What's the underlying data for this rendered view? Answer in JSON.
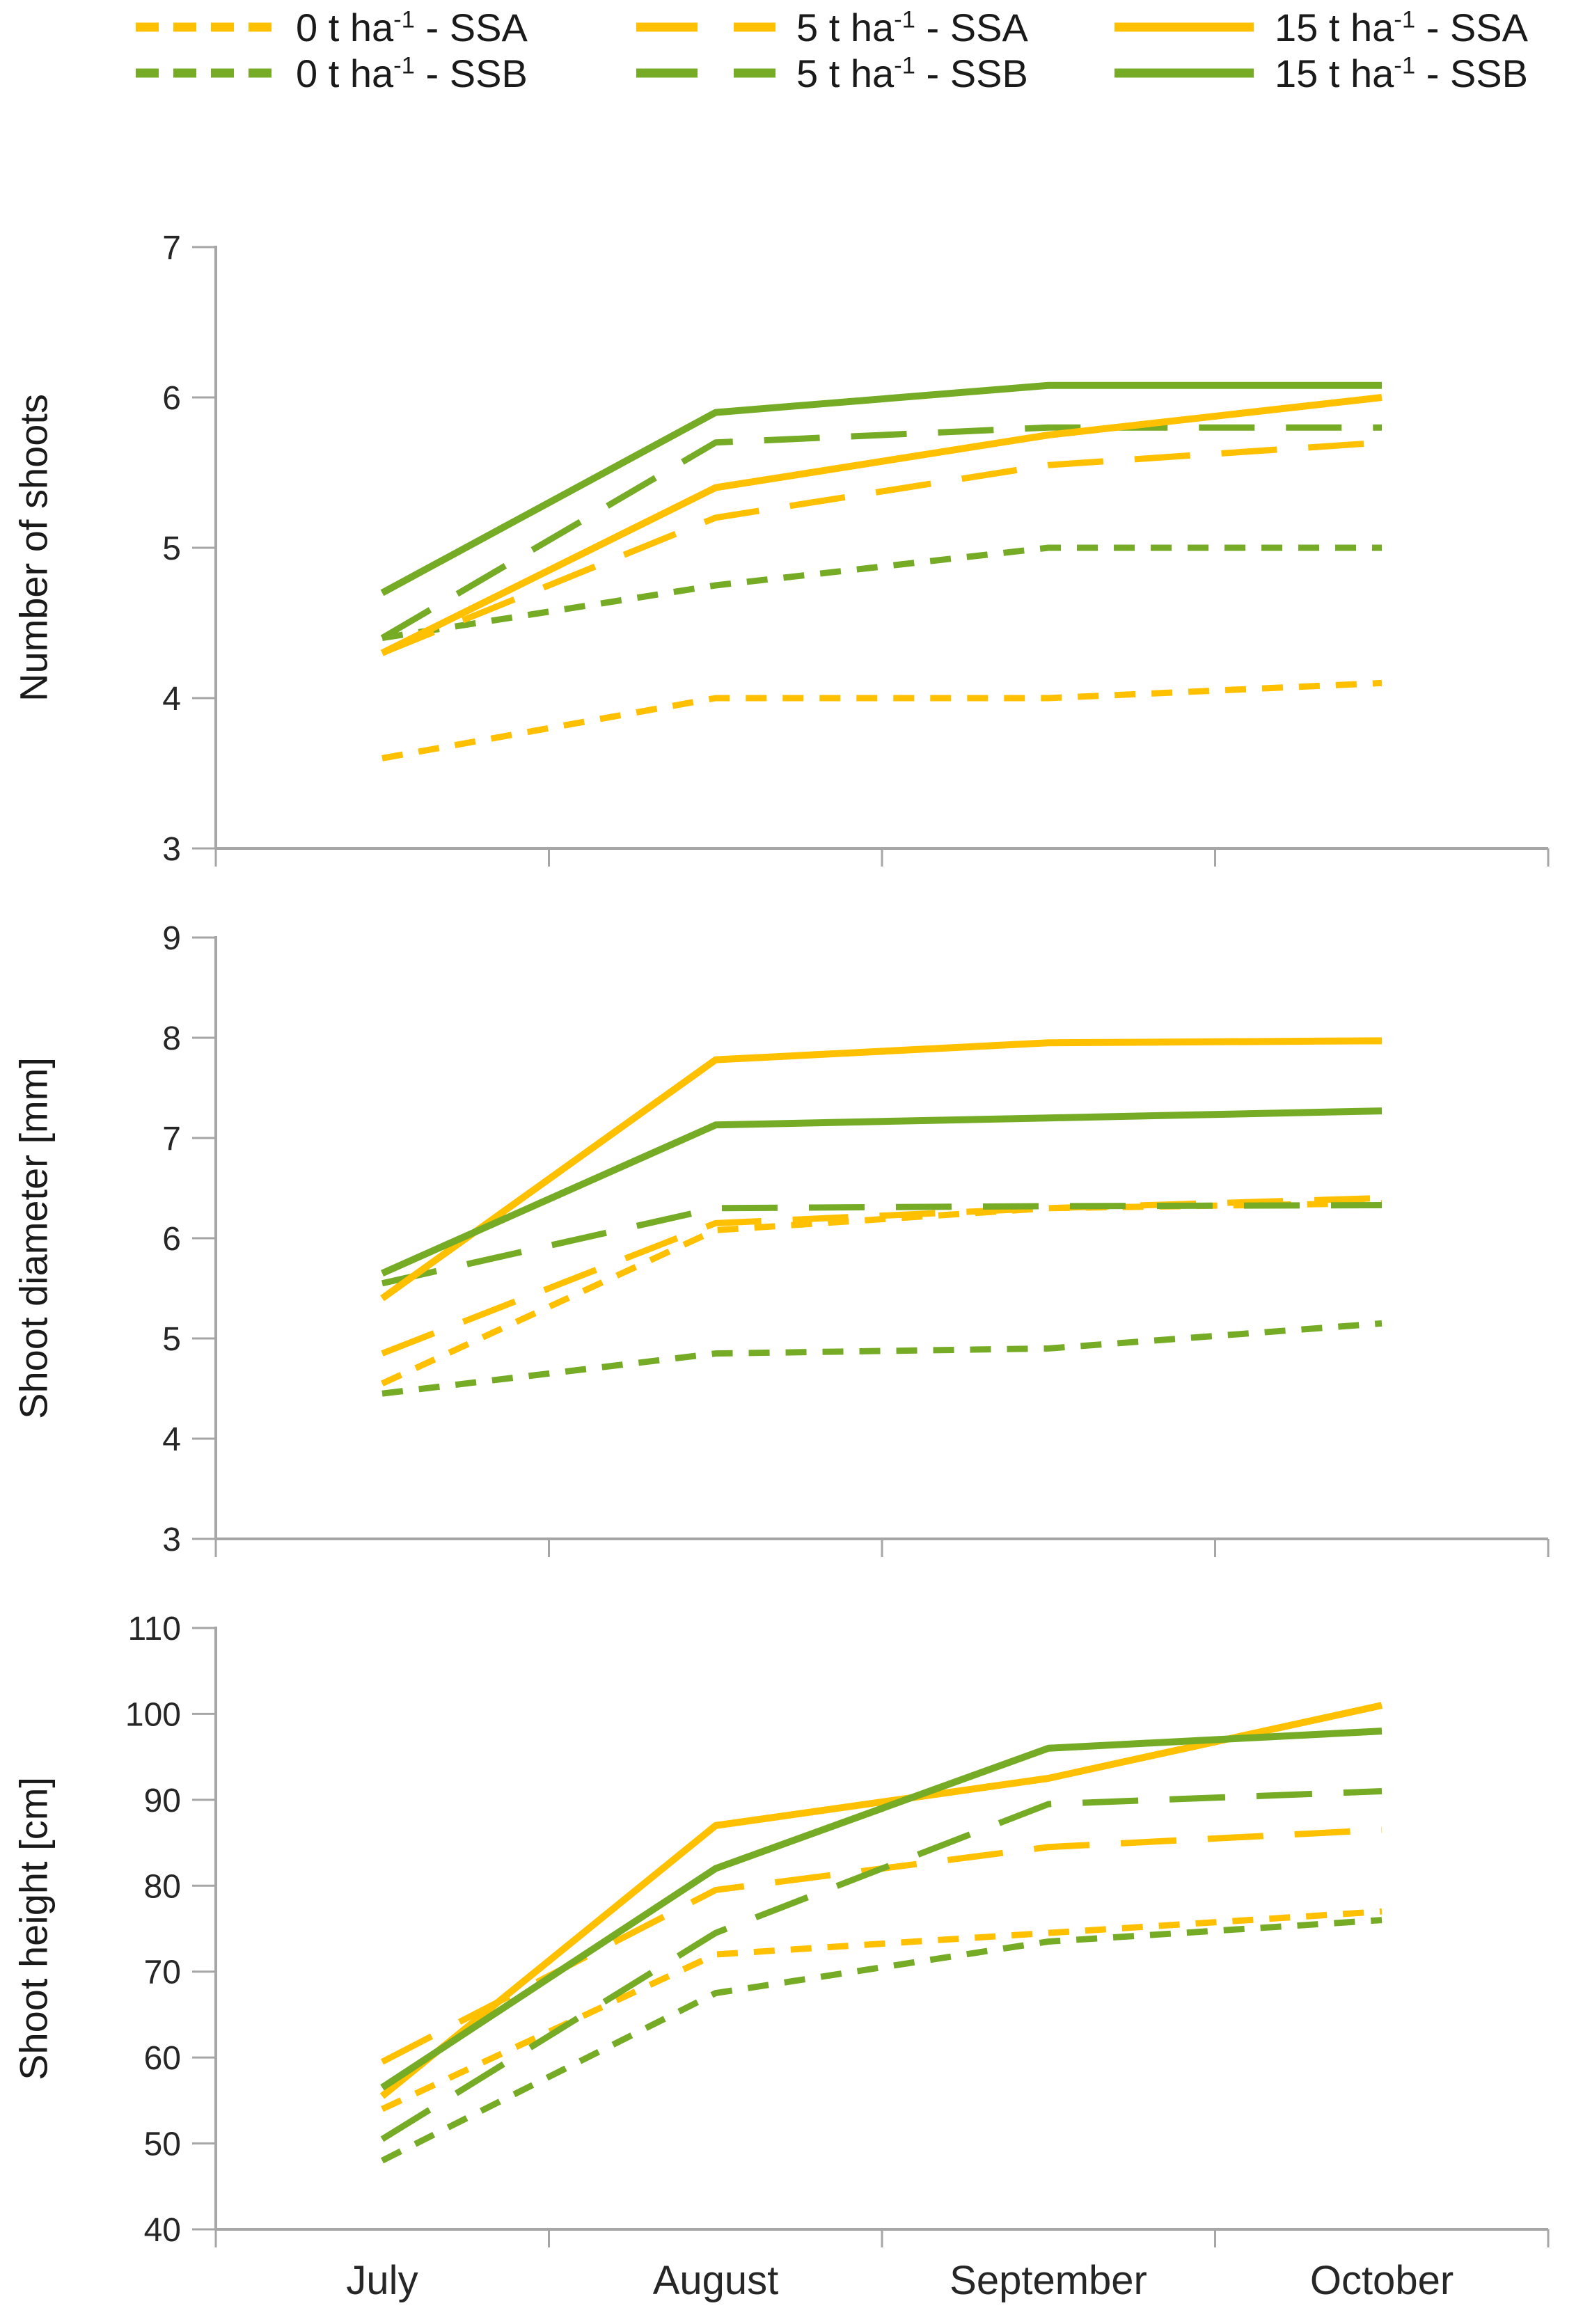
{
  "legend": {
    "note": "two rows, three columns of line samples with labels"
  },
  "series": {
    "0ssa": {
      "label_prefix": "0 t ha",
      "label_sup": "-1",
      "label_suffix": " - SSA",
      "color": "#FFC000",
      "dash": "short"
    },
    "5ssa": {
      "label_prefix": "5 t ha",
      "label_sup": "-1",
      "label_suffix": " - SSA",
      "color": "#FFC000",
      "dash": "long"
    },
    "15ssa": {
      "label_prefix": "15 t ha",
      "label_sup": "-1",
      "label_suffix": " - SSA",
      "color": "#FFC000",
      "dash": "solid"
    },
    "0ssb": {
      "label_prefix": "0 t ha",
      "label_sup": "-1",
      "label_suffix": " - SSB",
      "color": "#76AC25",
      "dash": "short"
    },
    "5ssb": {
      "label_prefix": "5 t ha",
      "label_sup": "-1",
      "label_suffix": " - SSB",
      "color": "#76AC25",
      "dash": "long"
    },
    "15ssb": {
      "label_prefix": "15 t ha",
      "label_sup": "-1",
      "label_suffix": " - SSB",
      "color": "#76AC25",
      "dash": "solid"
    }
  },
  "series_order": [
    "0ssa",
    "0ssb",
    "5ssa",
    "5ssb",
    "15ssa",
    "15ssb"
  ],
  "colors": {
    "ssa_yellow": "#FFC000",
    "ssb_green": "#76AC25",
    "axis_gray": "#A6A6A6",
    "text_dark": "#262626"
  },
  "x_axis": {
    "categories": [
      "July",
      "August",
      "September",
      "October"
    ]
  },
  "chart_data": [
    {
      "type": "line",
      "ylabel": "Number of shoots",
      "ylim": [
        3,
        7
      ],
      "yticks": [
        3,
        4,
        5,
        6,
        7
      ],
      "categories": [
        "July",
        "August",
        "September",
        "October"
      ],
      "legend_position": "top",
      "grid": false,
      "values": {
        "0ssa": [
          3.6,
          4.0,
          4.0,
          4.1
        ],
        "5ssa": [
          4.3,
          5.2,
          5.55,
          5.7
        ],
        "15ssa": [
          4.3,
          5.4,
          5.75,
          6.0
        ],
        "0ssb": [
          4.4,
          4.75,
          5.0,
          5.0
        ],
        "5ssb": [
          4.4,
          5.7,
          5.8,
          5.8
        ],
        "15ssb": [
          4.7,
          5.9,
          6.08,
          6.08
        ]
      }
    },
    {
      "type": "line",
      "ylabel": "Shoot diameter [mm]",
      "ylim": [
        3,
        9
      ],
      "yticks": [
        3,
        4,
        5,
        6,
        7,
        8,
        9
      ],
      "categories": [
        "July",
        "August",
        "September",
        "October"
      ],
      "grid": false,
      "values": {
        "0ssa": [
          4.55,
          6.08,
          6.3,
          6.35
        ],
        "5ssa": [
          4.85,
          6.15,
          6.3,
          6.4
        ],
        "15ssa": [
          5.4,
          7.78,
          7.95,
          7.97
        ],
        "0ssb": [
          4.45,
          4.85,
          4.9,
          5.15
        ],
        "5ssb": [
          5.55,
          6.3,
          6.32,
          6.33
        ],
        "15ssb": [
          5.65,
          7.13,
          7.2,
          7.27
        ]
      }
    },
    {
      "type": "line",
      "ylabel": "Shoot height [cm]",
      "ylim": [
        40,
        110
      ],
      "yticks": [
        40,
        50,
        60,
        70,
        80,
        90,
        100,
        110
      ],
      "categories": [
        "July",
        "August",
        "September",
        "October"
      ],
      "grid": false,
      "values": {
        "0ssa": [
          54,
          72,
          74.5,
          77
        ],
        "5ssa": [
          59.5,
          79.5,
          84.5,
          86.5
        ],
        "15ssa": [
          55.5,
          87,
          92.5,
          101
        ],
        "0ssb": [
          48,
          67.5,
          73.5,
          76
        ],
        "5ssb": [
          50.5,
          74.5,
          89.5,
          91
        ],
        "15ssb": [
          56.5,
          82,
          96,
          98
        ]
      }
    }
  ]
}
